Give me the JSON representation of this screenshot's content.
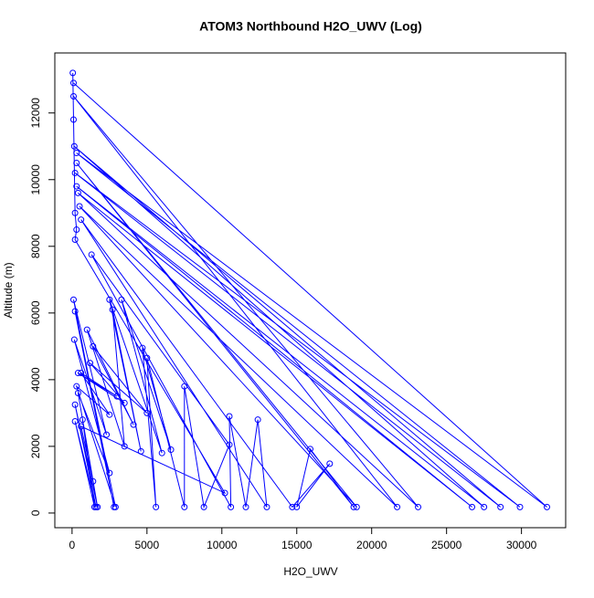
{
  "chart_data": {
    "type": "line",
    "title": "ATOM3 Northbound H2O_UWV (Log)",
    "x_label": "H2O_UWV",
    "y_label": "Altitude (m)",
    "color": "#0000ff",
    "markers": true,
    "x": [
      100,
      31700,
      300,
      29900,
      200,
      28600,
      150,
      27500,
      300,
      26700,
      400,
      23100,
      100,
      21700,
      500,
      19000,
      300,
      18800,
      15900,
      15000,
      17200,
      14700,
      600,
      13000,
      12400,
      11600,
      10500,
      10600,
      1300,
      10500,
      8800,
      7500,
      7500,
      5000,
      5600,
      4700,
      6600,
      3300,
      6000,
      2500,
      4600,
      2700,
      3500,
      1000,
      4100,
      1400,
      5000,
      1200,
      3500,
      400,
      3000,
      600,
      2500,
      300,
      2900,
      200,
      2800,
      100,
      2300,
      150,
      2500,
      400,
      1700,
      200,
      1600,
      200,
      1500,
      700,
      1400,
      600,
      10200,
      200,
      300,
      200,
      100,
      50
    ],
    "values": [
      12900,
      180,
      10800,
      180,
      10200,
      180,
      11000,
      180,
      9800,
      180,
      9600,
      180,
      12500,
      180,
      9200,
      180,
      10500,
      180,
      1920,
      180,
      1480,
      180,
      8800,
      180,
      2800,
      180,
      2900,
      180,
      7750,
      2050,
      180,
      3800,
      180,
      4650,
      180,
      4950,
      1900,
      6400,
      1800,
      6400,
      1850,
      6100,
      2000,
      5500,
      2650,
      5000,
      3000,
      4500,
      3300,
      4200,
      3500,
      4200,
      2950,
      3800,
      180,
      6050,
      180,
      6400,
      2350,
      5200,
      1200,
      3600,
      180,
      3250,
      180,
      2750,
      180,
      2800,
      950,
      2600,
      600,
      8200,
      8500,
      9000,
      11800,
      13200
    ],
    "xlim": [
      -1150,
      32950
    ],
    "ylim": [
      -440,
      13800
    ],
    "xticks": [
      0,
      5000,
      10000,
      15000,
      20000,
      25000,
      30000
    ],
    "yticks": [
      0,
      2000,
      4000,
      6000,
      8000,
      10000,
      12000
    ]
  }
}
